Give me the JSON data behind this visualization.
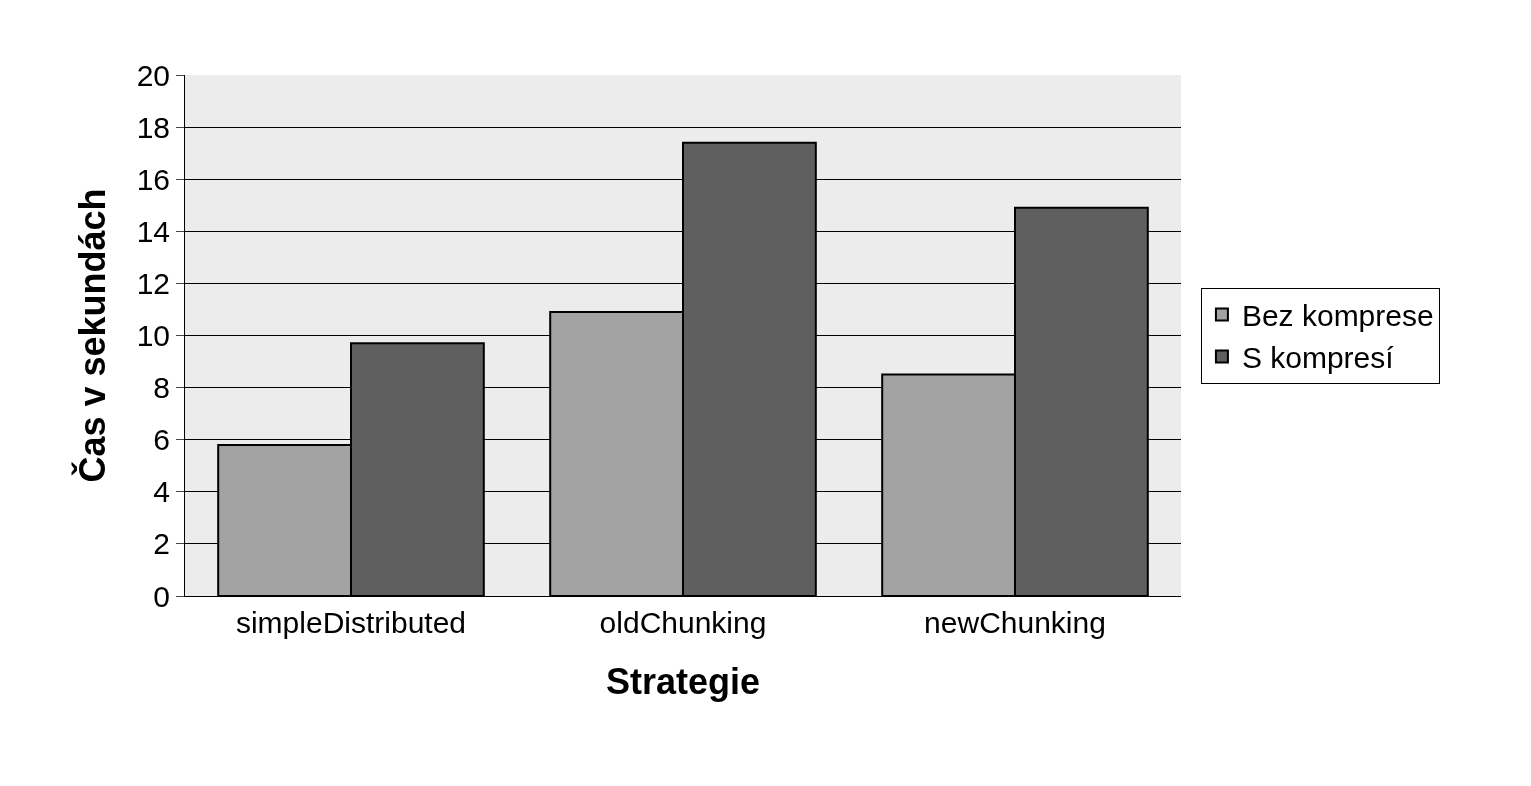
{
  "chart_data": {
    "type": "bar",
    "xlabel": "Strategie",
    "ylabel": "Čas v sekundách",
    "categories": [
      "simpleDistributed",
      "oldChunking",
      "newChunking"
    ],
    "series": [
      {
        "name": "Bez komprese",
        "color": "#a3a3a3",
        "values": [
          5.8,
          10.9,
          8.5
        ]
      },
      {
        "name": "S kompresí",
        "color": "#5f5f5f",
        "values": [
          9.7,
          17.4,
          14.9
        ]
      }
    ],
    "ylim": [
      0,
      20
    ],
    "yticks": [
      0,
      2,
      4,
      6,
      8,
      10,
      12,
      14,
      16,
      18,
      20
    ],
    "grid": "y",
    "legend": "right"
  }
}
